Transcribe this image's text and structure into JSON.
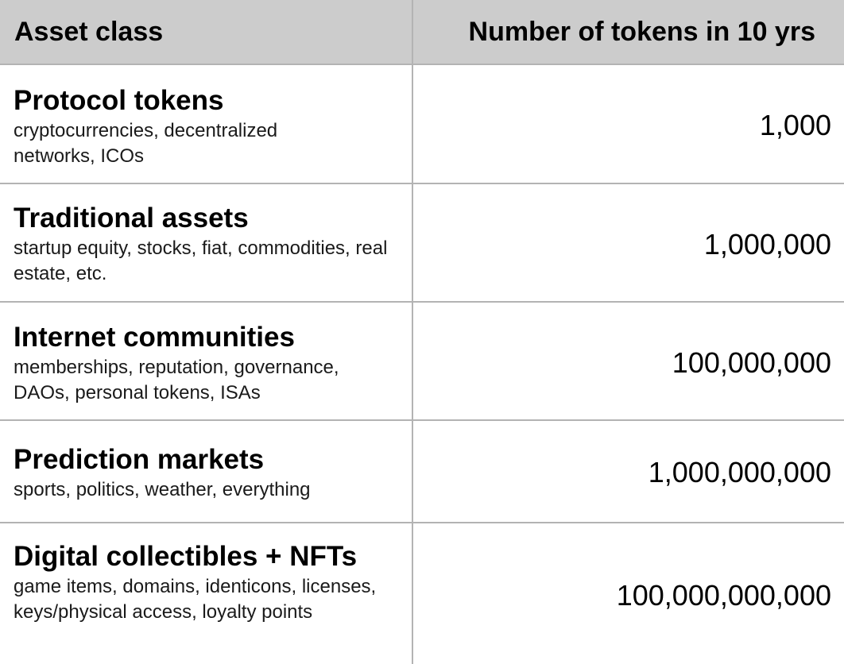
{
  "header": {
    "asset_class": "Asset class",
    "tokens": "Number of tokens in 10 yrs"
  },
  "rows": [
    {
      "title": "Protocol tokens",
      "description": "cryptocurrencies, decentralized networks, ICOs",
      "count": "1,000"
    },
    {
      "title": "Traditional assets",
      "description": "startup equity, stocks, fiat, commodities, real estate, etc.",
      "count": "1,000,000"
    },
    {
      "title": "Internet communities",
      "description": "memberships, reputation, governance, DAOs, personal tokens, ISAs",
      "count": "100,000,000"
    },
    {
      "title": "Prediction markets",
      "description": "sports, politics, weather, everything",
      "count": "1,000,000,000"
    },
    {
      "title": "Digital collectibles + NFTs",
      "description": "game items, domains, identicons, licenses, keys/physical access, loyalty points",
      "count": "100,000,000,000"
    }
  ]
}
